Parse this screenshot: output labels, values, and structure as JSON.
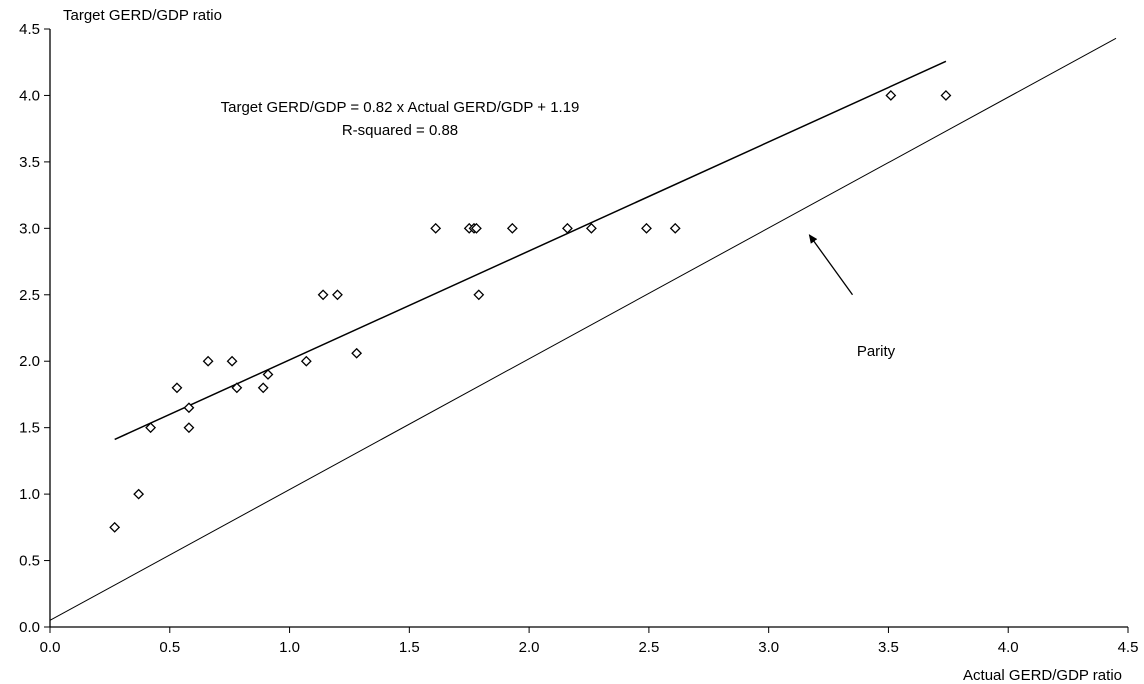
{
  "chart_data": {
    "type": "scatter",
    "title": "",
    "xlabel": "Actual GERD/GDP ratio",
    "ylabel": "Target GERD/GDP ratio",
    "xlim": [
      0,
      4.5
    ],
    "ylim": [
      0,
      4.5
    ],
    "xticks": [
      "0.0",
      "0.5",
      "1.0",
      "1.5",
      "2.0",
      "2.5",
      "3.0",
      "3.5",
      "4.0",
      "4.5"
    ],
    "yticks": [
      "0.0",
      "0.5",
      "1.0",
      "1.5",
      "2.0",
      "2.5",
      "3.0",
      "3.5",
      "4.0",
      "4.5"
    ],
    "grid": false,
    "legend": "none",
    "marker": "hollow-diamond",
    "points": [
      {
        "x": 0.27,
        "y": 0.75
      },
      {
        "x": 0.37,
        "y": 1.0
      },
      {
        "x": 0.42,
        "y": 1.5
      },
      {
        "x": 0.53,
        "y": 1.8
      },
      {
        "x": 0.58,
        "y": 1.65
      },
      {
        "x": 0.58,
        "y": 1.5
      },
      {
        "x": 0.66,
        "y": 2.0
      },
      {
        "x": 0.76,
        "y": 2.0
      },
      {
        "x": 0.78,
        "y": 1.8
      },
      {
        "x": 0.89,
        "y": 1.8
      },
      {
        "x": 0.91,
        "y": 1.9
      },
      {
        "x": 1.07,
        "y": 2.0
      },
      {
        "x": 1.14,
        "y": 2.5
      },
      {
        "x": 1.2,
        "y": 2.5
      },
      {
        "x": 1.28,
        "y": 2.06
      },
      {
        "x": 1.61,
        "y": 3.0
      },
      {
        "x": 1.75,
        "y": 3.0
      },
      {
        "x": 1.77,
        "y": 3.0
      },
      {
        "x": 1.78,
        "y": 3.0
      },
      {
        "x": 1.79,
        "y": 2.5
      },
      {
        "x": 1.93,
        "y": 3.0
      },
      {
        "x": 2.16,
        "y": 3.0
      },
      {
        "x": 2.26,
        "y": 3.0
      },
      {
        "x": 2.49,
        "y": 3.0
      },
      {
        "x": 2.61,
        "y": 3.0
      },
      {
        "x": 3.51,
        "y": 4.0
      },
      {
        "x": 3.74,
        "y": 4.0
      }
    ],
    "regression": {
      "slope": 0.82,
      "intercept": 1.19,
      "x_range": [
        0.27,
        3.74
      ]
    },
    "parity": {
      "x_range": [
        0,
        4.45
      ]
    },
    "annotations": {
      "equation": "Target GERD/GDP = 0.82 x Actual GERD/GDP + 1.19",
      "r_squared": "R-squared = 0.88",
      "parity_label": "Parity",
      "parity_arrow": {
        "from": [
          3.35,
          2.5
        ],
        "to": [
          3.17,
          2.95
        ]
      }
    },
    "colors": {
      "axis": "#000000",
      "marker": "#000000",
      "line": "#000000",
      "background": "#ffffff"
    }
  }
}
